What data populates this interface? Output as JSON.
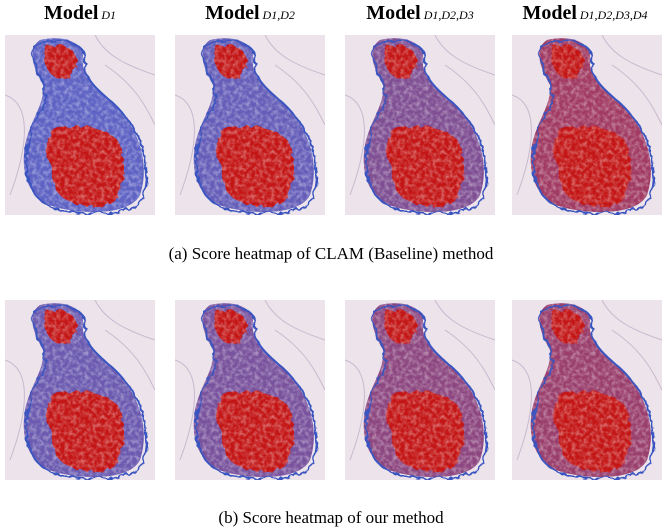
{
  "headers": [
    {
      "label": "Model",
      "subscript": "D1"
    },
    {
      "label": "Model",
      "subscript": "D1,D2"
    },
    {
      "label": "Model",
      "subscript": "D1,D2,D3"
    },
    {
      "label": "Model",
      "subscript": "D1,D2,D3,D4"
    }
  ],
  "rows": [
    {
      "caption": "(a) Score heatmap of CLAM (Baseline) method"
    },
    {
      "caption": "(b) Score heatmap of our method"
    }
  ]
}
